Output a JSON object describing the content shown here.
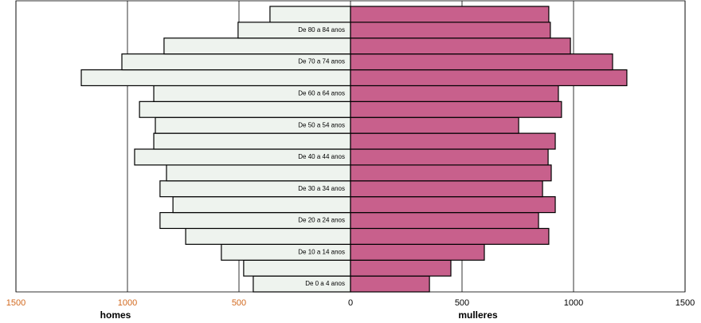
{
  "chart_data": {
    "type": "pyramid",
    "categories": [
      "De 0 a 4 anos",
      null,
      "De 10 a 14 anos",
      null,
      "De 20 a 24 anos",
      null,
      "De 30 a 34 anos",
      null,
      "De 40 a 44 anos",
      null,
      "De 50 a 54 anos",
      null,
      "De 60 a 64 anos",
      null,
      "De 70 a 74 anos",
      null,
      "De 80 a 84 anos",
      null
    ],
    "series": [
      {
        "name": "homes",
        "color": "#eef3ee",
        "side": "left",
        "values": [
          436,
          479,
          579,
          739,
          854,
          796,
          854,
          825,
          968,
          882,
          875,
          946,
          882,
          1207,
          1025,
          836,
          504,
          361
        ]
      },
      {
        "name": "mulleres",
        "color": "#c8608c",
        "side": "right",
        "values": [
          354,
          450,
          600,
          889,
          843,
          918,
          861,
          900,
          886,
          918,
          754,
          946,
          932,
          1239,
          1175,
          986,
          896,
          889
        ]
      }
    ],
    "xlim": [
      -1500,
      1500
    ],
    "xticks": [
      {
        "value": -1500,
        "label": "1500"
      },
      {
        "value": -1000,
        "label": "1000"
      },
      {
        "value": -500,
        "label": "500"
      },
      0,
      500,
      1000,
      1500
    ],
    "left_tick_color": "#d2691e",
    "grid": true
  }
}
